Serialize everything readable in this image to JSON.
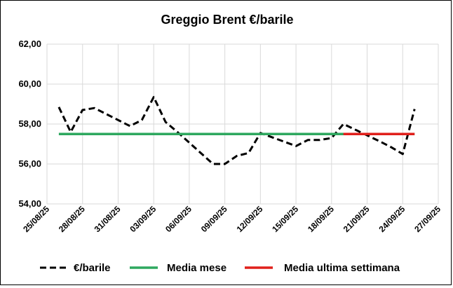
{
  "chart_data": {
    "type": "line",
    "title": "Greggio Brent €/barile",
    "xlabel": "",
    "ylabel": "",
    "ylim": [
      54,
      62
    ],
    "y_ticks": [
      54,
      56,
      58,
      60,
      62
    ],
    "y_tick_labels": [
      "54,00",
      "56,00",
      "58,00",
      "60,00",
      "62,00"
    ],
    "x_range": [
      "2025-08-25",
      "2025-09-27"
    ],
    "x_ticks": [
      "2025-08-25",
      "2025-08-28",
      "2025-08-31",
      "2025-09-03",
      "2025-09-06",
      "2025-09-09",
      "2025-09-12",
      "2025-09-15",
      "2025-09-18",
      "2025-09-21",
      "2025-09-24",
      "2025-09-27"
    ],
    "x_tick_labels": [
      "25/08/25",
      "28/08/25",
      "31/08/25",
      "03/09/25",
      "06/09/25",
      "09/09/25",
      "12/09/25",
      "15/09/25",
      "18/09/25",
      "21/09/25",
      "24/09/25",
      "27/09/25"
    ],
    "grid": true,
    "legend_position": "bottom",
    "series": [
      {
        "name": "€/barile",
        "color": "#000000",
        "style": "dashed",
        "x": [
          "2025-08-26",
          "2025-08-27",
          "2025-08-28",
          "2025-08-29",
          "2025-09-01",
          "2025-09-02",
          "2025-09-03",
          "2025-09-04",
          "2025-09-05",
          "2025-09-08",
          "2025-09-09",
          "2025-09-10",
          "2025-09-11",
          "2025-09-12",
          "2025-09-15",
          "2025-09-16",
          "2025-09-17",
          "2025-09-18",
          "2025-09-19",
          "2025-09-22",
          "2025-09-23",
          "2025-09-24",
          "2025-09-25"
        ],
        "values": [
          58.85,
          57.6,
          58.7,
          58.8,
          57.9,
          58.2,
          59.35,
          58.1,
          57.6,
          56.0,
          56.0,
          56.4,
          56.55,
          57.55,
          56.9,
          57.2,
          57.2,
          57.3,
          58.0,
          57.15,
          56.85,
          56.5,
          58.75
        ]
      },
      {
        "name": "Media mese",
        "color": "#2ea85f",
        "style": "solid",
        "x": [
          "2025-08-26",
          "2025-09-25"
        ],
        "values": [
          57.5,
          57.5
        ]
      },
      {
        "name": "Media ultima settimana",
        "color": "#e0201b",
        "style": "solid",
        "x": [
          "2025-09-19",
          "2025-09-25"
        ],
        "values": [
          57.5,
          57.5
        ]
      }
    ]
  }
}
